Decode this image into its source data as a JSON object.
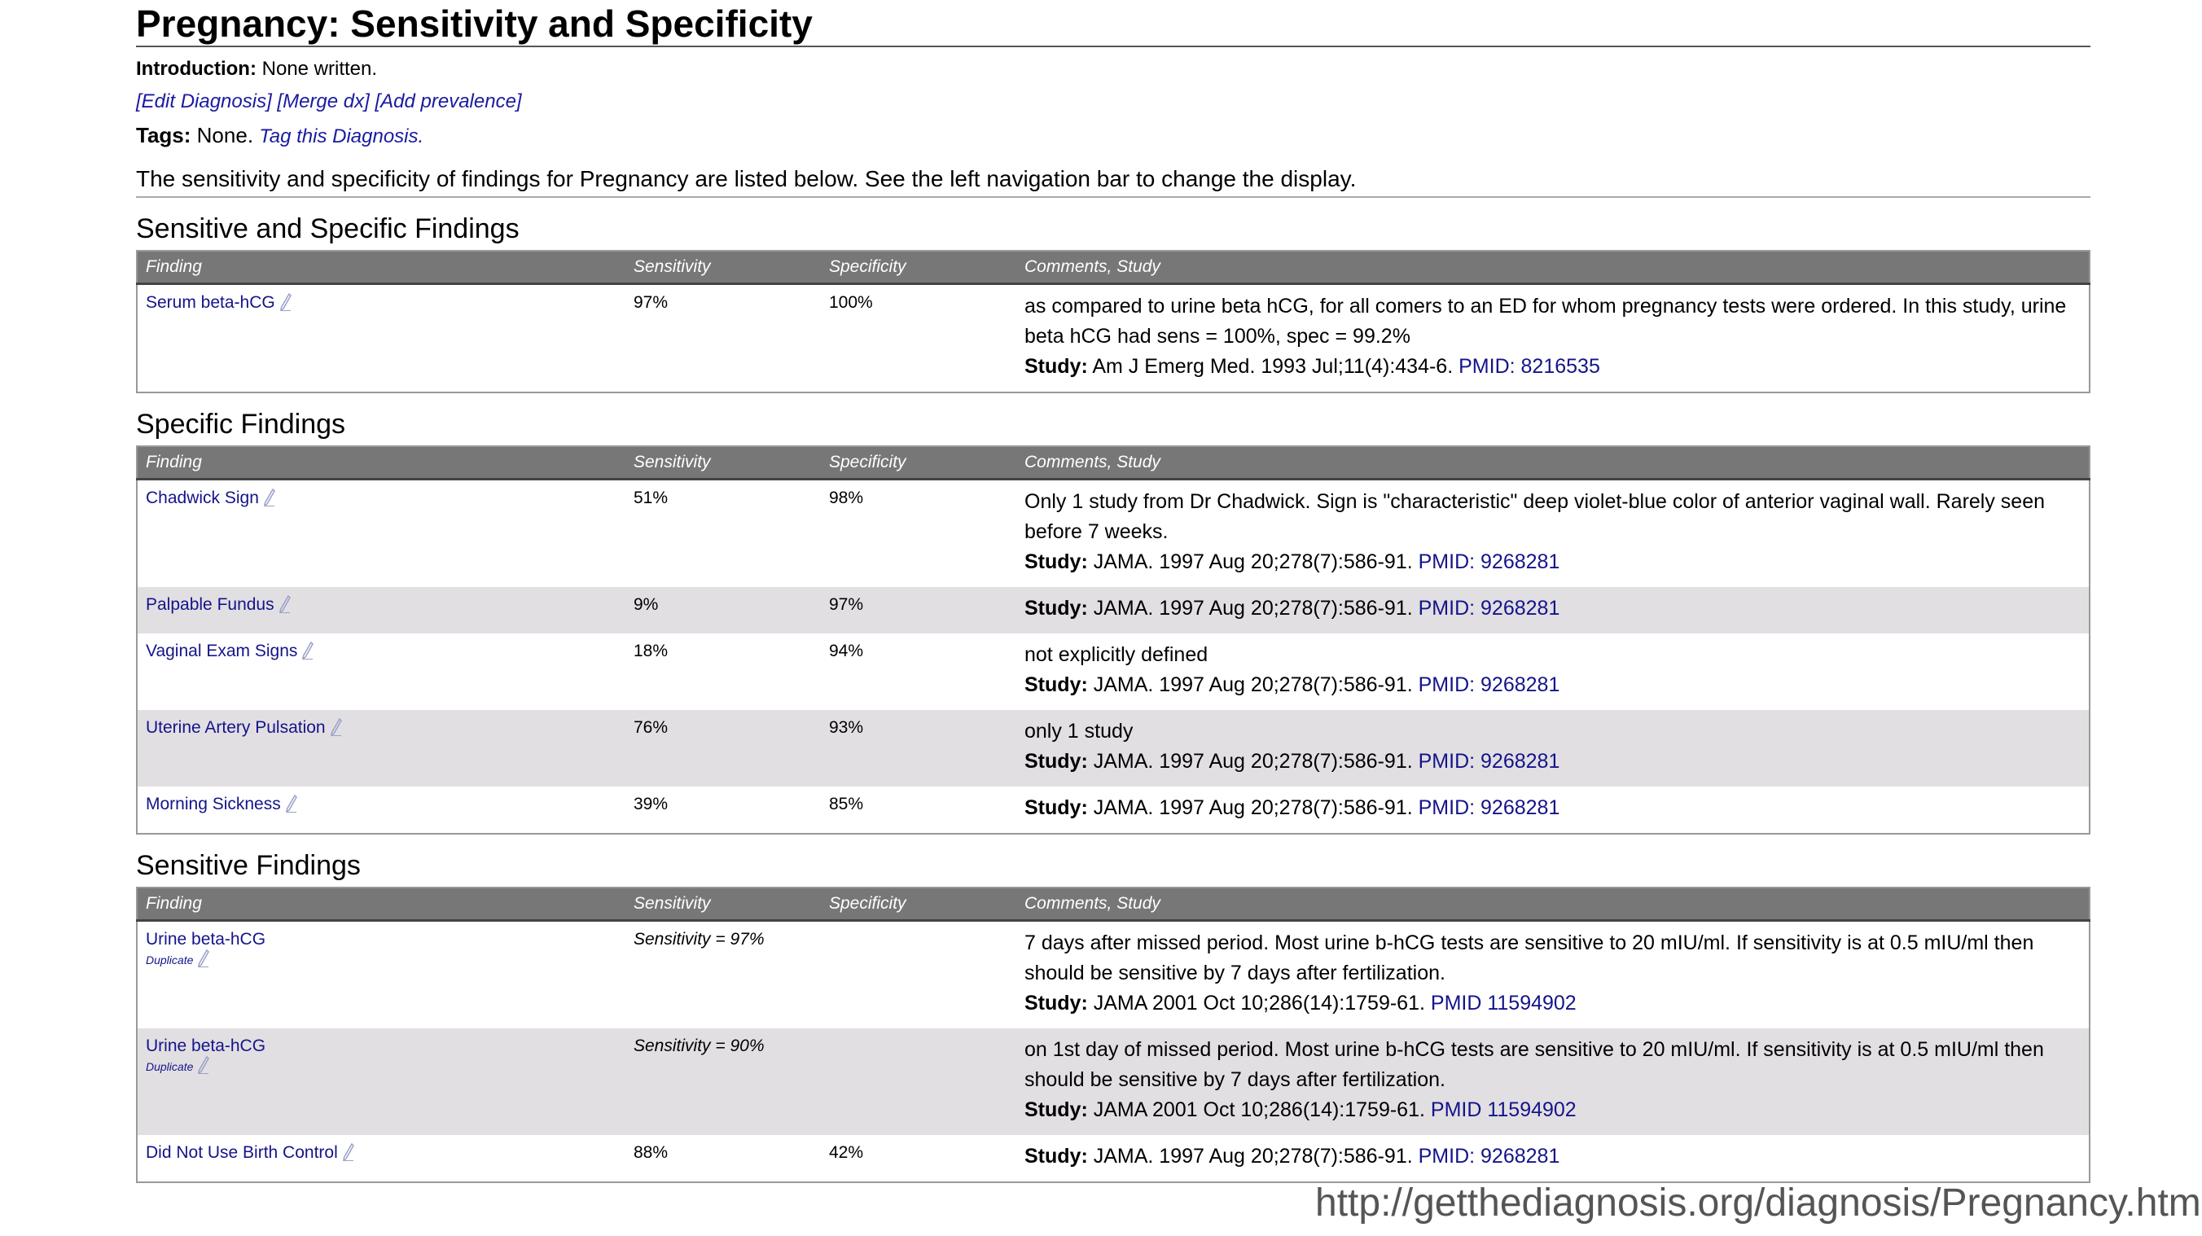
{
  "title": "Pregnancy: Sensitivity and Specificity",
  "intro": {
    "label": "Introduction:",
    "text": "None written."
  },
  "actions": {
    "edit": "[Edit Diagnosis]",
    "merge": "[Merge dx]",
    "prevalence": "[Add prevalence]"
  },
  "tags": {
    "label": "Tags:",
    "text": "None.",
    "link": "Tag this Diagnosis."
  },
  "summary": "The sensitivity and specificity of findings for Pregnancy are listed below. See the left navigation bar to change the display.",
  "columns": {
    "finding": "Finding",
    "sensitivity": "Sensitivity",
    "specificity": "Specificity",
    "comments": "Comments, Study"
  },
  "study_label": "Study:",
  "sections": [
    {
      "heading": "Sensitive and Specific Findings",
      "rows": [
        {
          "finding": "Serum beta-hCG",
          "sens": "97%",
          "spec": "100%",
          "comment": "as compared to urine beta hCG, for all comers to an ED for whom pregnancy tests were ordered. In this study, urine beta hCG had sens = 100%, spec = 99.2%",
          "study": "Am J Emerg Med. 1993 Jul;11(4):434-6.",
          "pmid": "PMID: 8216535"
        }
      ]
    },
    {
      "heading": "Specific Findings",
      "rows": [
        {
          "finding": "Chadwick Sign",
          "sens": "51%",
          "spec": "98%",
          "comment": "Only 1 study from Dr Chadwick. Sign is \"characteristic\" deep violet-blue color of anterior vaginal wall. Rarely seen before 7 weeks.",
          "study": "JAMA. 1997 Aug 20;278(7):586-91.",
          "pmid": "PMID: 9268281"
        },
        {
          "finding": "Palpable Fundus",
          "sens": "9%",
          "spec": "97%",
          "comment": "",
          "study": "JAMA. 1997 Aug 20;278(7):586-91.",
          "pmid": "PMID: 9268281"
        },
        {
          "finding": "Vaginal Exam Signs",
          "sens": "18%",
          "spec": "94%",
          "comment": "not explicitly defined",
          "study": "JAMA. 1997 Aug 20;278(7):586-91.",
          "pmid": "PMID: 9268281"
        },
        {
          "finding": "Uterine Artery Pulsation",
          "sens": "76%",
          "spec": "93%",
          "comment": "only 1 study",
          "study": "JAMA. 1997 Aug 20;278(7):586-91.",
          "pmid": "PMID: 9268281"
        },
        {
          "finding": "Morning Sickness",
          "sens": "39%",
          "spec": "85%",
          "comment": "",
          "study": "JAMA. 1997 Aug 20;278(7):586-91.",
          "pmid": "PMID: 9268281"
        }
      ]
    },
    {
      "heading": "Sensitive Findings",
      "rows": [
        {
          "finding": "Urine beta-hCG",
          "dup": "Duplicate",
          "sens": "Sensitivity = 97%",
          "spec": "",
          "comment": "7 days after missed period. Most urine b-hCG tests are sensitive to 20 mIU/ml. If sensitivity is at 0.5 mIU/ml then should be sensitive by 7 days after fertilization.",
          "study": "JAMA 2001 Oct 10;286(14):1759-61.",
          "pmid": "PMID 11594902"
        },
        {
          "finding": "Urine beta-hCG",
          "dup": "Duplicate",
          "sens": "Sensitivity = 90%",
          "spec": "",
          "comment": "on 1st day of missed period. Most urine b-hCG tests are sensitive to 20 mIU/ml. If sensitivity is at 0.5 mIU/ml then should be sensitive by 7 days after fertilization.",
          "study": "JAMA 2001 Oct 10;286(14):1759-61.",
          "pmid": "PMID 11594902"
        },
        {
          "finding": "Did Not Use Birth Control",
          "sens": "88%",
          "spec": "42%",
          "comment": "",
          "study": "JAMA. 1997 Aug 20;278(7):586-91.",
          "pmid": "PMID: 9268281"
        }
      ]
    }
  ],
  "footer_url": "http://getthediagnosis.org/diagnosis/Pregnancy.htm"
}
